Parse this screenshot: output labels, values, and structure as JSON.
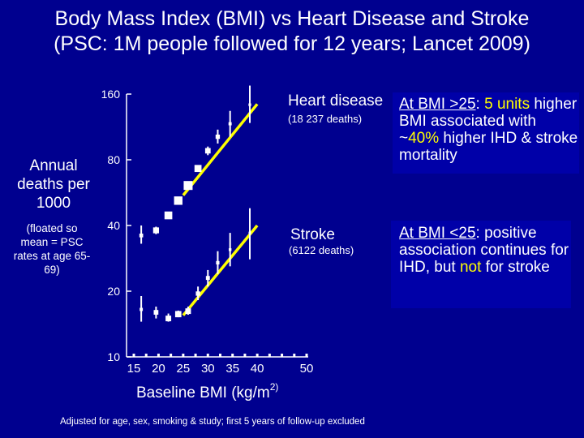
{
  "title": {
    "line1": "Body Mass Index (BMI) vs Heart Disease and Stroke",
    "line2": "(PSC: 1M people followed for 12 years; Lancet 2009)"
  },
  "y_axis": {
    "label_main": "Annual deaths per 1000",
    "label_sub": "(floated so mean = PSC rates at age 65-69)"
  },
  "x_axis": {
    "label": "Baseline BMI (kg/m",
    "label_sup": "2)"
  },
  "series_labels": {
    "ihd_name": "Heart disease",
    "ihd_deaths": "(18 237 deaths)",
    "stroke_name": "Stroke",
    "stroke_deaths": "(6122 deaths)"
  },
  "box1": {
    "p1": "At BMI >25",
    "p2": ":",
    "p3": "5 units",
    "p4": "higher BMI associated with ~",
    "p5": "40%",
    "p6": " higher IHD & stroke mortality"
  },
  "box2": {
    "p1": "At BMI <25",
    "p2": ":",
    "p3": "positive association continues for IHD, but ",
    "p4": "not",
    "p5": " for stroke"
  },
  "footnote": "Adjusted for age, sex, smoking & study; first 5 years of follow-up excluded",
  "colors": {
    "background": "#00008f",
    "text": "#ffffff",
    "highlight": "#ffff00",
    "box_background": "#0000a8"
  },
  "chart_data": {
    "type": "scatter",
    "x_scale": "linear",
    "y_scale": "log",
    "xlim": [
      15,
      50
    ],
    "ylim": [
      10,
      160
    ],
    "x_ticks": [
      15,
      20,
      25,
      30,
      35,
      40,
      50
    ],
    "x_tick_labels": [
      "15",
      "20",
      "25",
      "30",
      "35",
      "40",
      "50"
    ],
    "y_ticks": [
      10,
      20,
      40,
      80,
      160
    ],
    "y_tick_labels": [
      "10",
      "20",
      "40",
      "80",
      "160"
    ],
    "series": [
      {
        "name": "Heart disease",
        "points": [
          {
            "x": 16.5,
            "y": 36.0,
            "lo": 33.0,
            "hi": 40.0
          },
          {
            "x": 19.5,
            "y": 38.0,
            "lo": 36.5,
            "hi": 39.5
          },
          {
            "x": 22.0,
            "y": 44.5,
            "lo": 43.5,
            "hi": 45.5
          },
          {
            "x": 24.0,
            "y": 52.0,
            "lo": 51.0,
            "hi": 53.0
          },
          {
            "x": 26.0,
            "y": 61.0,
            "lo": 60.0,
            "hi": 62.0
          },
          {
            "x": 28.0,
            "y": 73.0,
            "lo": 71.0,
            "hi": 75.0
          },
          {
            "x": 30.0,
            "y": 88.0,
            "lo": 84.0,
            "hi": 92.0
          },
          {
            "x": 32.0,
            "y": 102.0,
            "lo": 95.0,
            "hi": 110.0
          },
          {
            "x": 34.5,
            "y": 117.0,
            "lo": 102.0,
            "hi": 134.0
          },
          {
            "x": 38.5,
            "y": 143.0,
            "lo": 118.0,
            "hi": 175.0
          }
        ],
        "fit": {
          "x": [
            25,
            40
          ],
          "y": [
            55,
            144
          ]
        }
      },
      {
        "name": "Stroke",
        "points": [
          {
            "x": 16.5,
            "y": 16.5,
            "lo": 14.5,
            "hi": 19.0
          },
          {
            "x": 19.5,
            "y": 16.0,
            "lo": 15.0,
            "hi": 17.0
          },
          {
            "x": 22.0,
            "y": 15.0,
            "lo": 14.5,
            "hi": 15.8
          },
          {
            "x": 24.0,
            "y": 15.7,
            "lo": 15.2,
            "hi": 16.3
          },
          {
            "x": 26.0,
            "y": 16.2,
            "lo": 15.6,
            "hi": 17.0
          },
          {
            "x": 28.0,
            "y": 19.5,
            "lo": 18.2,
            "hi": 21.0
          },
          {
            "x": 30.0,
            "y": 23.0,
            "lo": 21.0,
            "hi": 25.0
          },
          {
            "x": 32.0,
            "y": 27.0,
            "lo": 24.0,
            "hi": 30.5
          },
          {
            "x": 34.5,
            "y": 31.0,
            "lo": 26.0,
            "hi": 37.0
          },
          {
            "x": 38.5,
            "y": 37.0,
            "lo": 28.0,
            "hi": 48.0
          }
        ],
        "fit": {
          "x": [
            25,
            40
          ],
          "y": [
            15.5,
            40
          ]
        }
      }
    ]
  }
}
